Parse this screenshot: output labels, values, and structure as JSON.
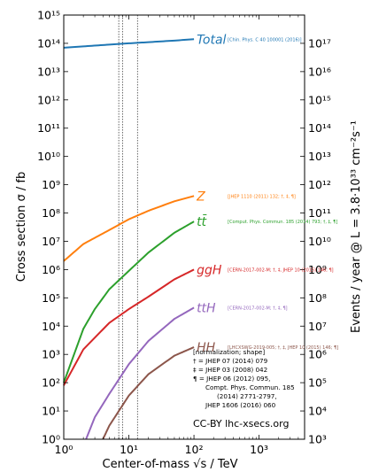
{
  "chart_data": {
    "type": "line",
    "xlabel": "Center-of-mass √s / TeV",
    "ylabel": "Cross section σ / fb",
    "y2label": "Events / year @ L = 3.8·10³³ cm⁻²s⁻¹",
    "xscale": "log",
    "yscale": "log",
    "xlim": [
      1,
      5000
    ],
    "ylim": [
      1,
      1000000000000000.0
    ],
    "y2lim": [
      1000.0,
      1e+17
    ],
    "x_ticks": [
      {
        "value": 1,
        "label": "10⁰"
      },
      {
        "value": 10,
        "label": "10¹"
      },
      {
        "value": 100,
        "label": "10²"
      },
      {
        "value": 1000,
        "label": "10³"
      }
    ],
    "y_ticks": [
      {
        "value": 1,
        "label": "10⁰"
      },
      {
        "value": 10,
        "label": "10¹"
      },
      {
        "value": 100,
        "label": "10²"
      },
      {
        "value": 1000,
        "label": "10³"
      },
      {
        "value": 10000,
        "label": "10⁴"
      },
      {
        "value": 100000,
        "label": "10⁵"
      },
      {
        "value": 1000000,
        "label": "10⁶"
      },
      {
        "value": 10000000,
        "label": "10⁷"
      },
      {
        "value": 100000000,
        "label": "10⁸"
      },
      {
        "value": 1000000000,
        "label": "10⁹"
      },
      {
        "value": 10000000000,
        "label": "10¹⁰"
      },
      {
        "value": 100000000000,
        "label": "10¹¹"
      },
      {
        "value": 1000000000000,
        "label": "10¹²"
      },
      {
        "value": 10000000000000,
        "label": "10¹³"
      },
      {
        "value": 100000000000000,
        "label": "10¹⁴"
      },
      {
        "value": 1000000000000000,
        "label": "10¹⁵"
      }
    ],
    "y2_ticks": [
      {
        "value": 1000,
        "label": "10³"
      },
      {
        "value": 10000,
        "label": "10⁴"
      },
      {
        "value": 100000,
        "label": "10⁵"
      },
      {
        "value": 1000000,
        "label": "10⁶"
      },
      {
        "value": 10000000,
        "label": "10⁷"
      },
      {
        "value": 100000000,
        "label": "10⁸"
      },
      {
        "value": 1000000000,
        "label": "10⁹"
      },
      {
        "value": 10000000000,
        "label": "10¹⁰"
      },
      {
        "value": 100000000000,
        "label": "10¹¹"
      },
      {
        "value": 1000000000000,
        "label": "10¹²"
      },
      {
        "value": 10000000000000,
        "label": "10¹³"
      },
      {
        "value": 100000000000000,
        "label": "10¹⁴"
      },
      {
        "value": 1000000000000000,
        "label": "10¹⁵"
      },
      {
        "value": 10000000000000000,
        "label": "10¹⁶"
      },
      {
        "value": 100000000000000000,
        "label": "10¹⁷"
      }
    ],
    "vlines": [
      7,
      8,
      13.6
    ],
    "series": [
      {
        "name": "Total",
        "color": "#1f77b4",
        "label_size": "big",
        "reference": "[Chin. Phys. C 40 100001 (2016)]",
        "x": [
          1,
          2,
          5,
          10,
          20,
          50,
          100
        ],
        "y": [
          70000000000000.0,
          78000000000000.0,
          90000000000000.0,
          100000000000000.0,
          110000000000000.0,
          125000000000000.0,
          140000000000000.0
        ]
      },
      {
        "name": "Z",
        "color": "#ff7f0e",
        "label_size": "big",
        "reference": "[JHEP 1110 (2011) 132; †, ‡, ¶]",
        "x": [
          1,
          2,
          5,
          10,
          20,
          50,
          100
        ],
        "y": [
          2000000.0,
          8000000.0,
          25000000.0,
          60000000.0,
          120000000.0,
          260000000.0,
          400000000.0
        ]
      },
      {
        "name": "tt̄",
        "color": "#2ca02c",
        "label_size": "big",
        "reference": "[Comput. Phys. Commun. 185 (2014) 793; †, ‡, ¶]",
        "x": [
          1,
          2,
          3,
          5,
          10,
          20,
          50,
          100
        ],
        "y": [
          100,
          8000,
          40000,
          200000,
          900000,
          4000000,
          20000000,
          50000000
        ]
      },
      {
        "name": "ggH",
        "color": "#d62728",
        "label_size": "big",
        "reference": "[CERN-2017-002-M; †, ‡, JHEP 10 (2015) 146; ¶]",
        "x": [
          1,
          2,
          5,
          10,
          20,
          50,
          100
        ],
        "y": [
          80,
          1500,
          13000,
          40000,
          110000,
          450000,
          1000000
        ]
      },
      {
        "name": "ttH",
        "color": "#9467bd",
        "label_size": "big",
        "reference": "[CERN-2017-002-M; †, ‡, ¶]",
        "x": [
          2.2,
          3,
          5,
          10,
          20,
          50,
          100
        ],
        "y": [
          1,
          6,
          40,
          450,
          3000,
          18000,
          45000
        ]
      },
      {
        "name": "HH",
        "color": "#8c564b",
        "label_size": "big",
        "reference": "[LHCXSWG-2019-005; †, ‡, JHEP 10 (2015) 146; ¶]",
        "x": [
          4,
          5,
          10,
          20,
          50,
          100
        ],
        "y": [
          1,
          3,
          35,
          200,
          900,
          1800
        ]
      }
    ],
    "notes": [
      "[normalization; shape]",
      "† = JHEP 07 (2014) 079",
      "‡ = JHEP 03 (2008) 042",
      "¶ = JHEP 06 (2012) 095,",
      "Compt. Phys. Commun. 185",
      "(2014) 2771-2797,",
      "JHEP 1606 (2016) 060"
    ],
    "credit": "CC-BY lhc-xsecs.org"
  }
}
